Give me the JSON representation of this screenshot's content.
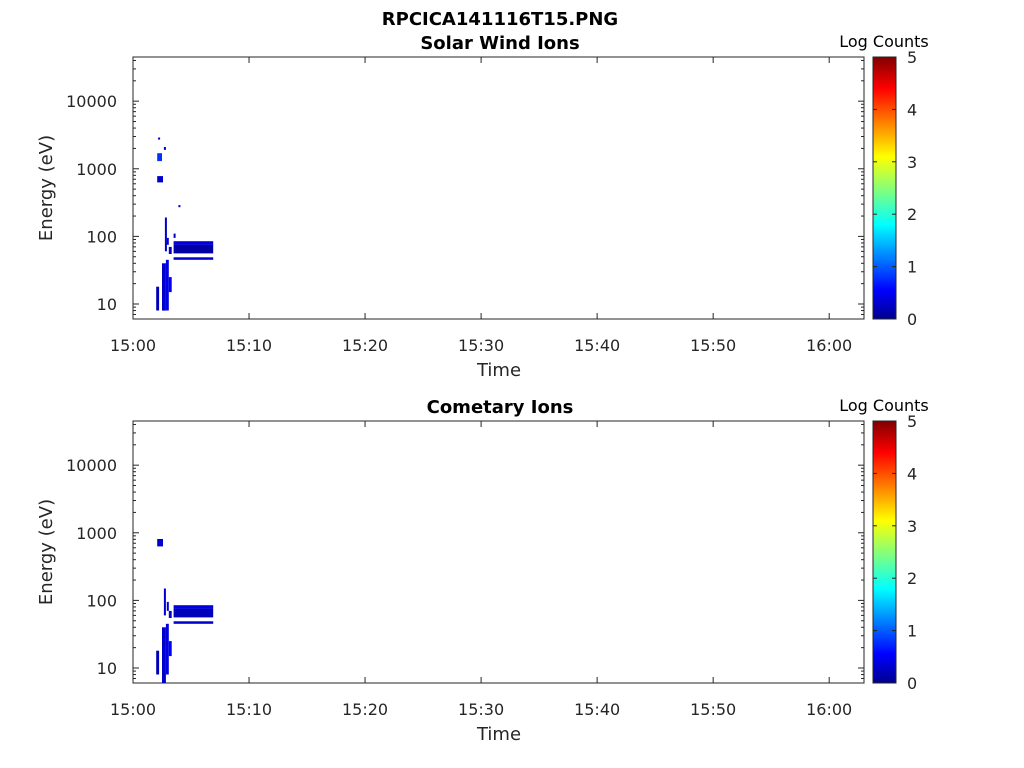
{
  "figure": {
    "suptitle": "RPCICA141116T15.PNG"
  },
  "colors": {
    "cmap": [
      "#00008f",
      "#0000ff",
      "#00ffff",
      "#ffff00",
      "#ff0000",
      "#800000"
    ],
    "axis": "#262626"
  },
  "chart_data": [
    {
      "type": "heatmap",
      "title": "Solar Wind Ions",
      "xlabel": "Time",
      "ylabel": "Energy (eV)",
      "yscale": "log",
      "ylim": [
        6,
        45000
      ],
      "xlim": [
        "15:00",
        "16:03"
      ],
      "xticks": [
        "15:00",
        "15:10",
        "15:20",
        "15:30",
        "15:40",
        "15:50",
        "16:00"
      ],
      "yticks": [
        10,
        100,
        1000,
        10000
      ],
      "ytick_labels": [
        "10",
        "100",
        "1000",
        "10000"
      ],
      "colorbar": {
        "label": "Log Counts",
        "range": [
          0,
          5
        ],
        "ticks": [
          "0",
          "1",
          "2",
          "3",
          "4",
          "5"
        ]
      },
      "cells": [
        {
          "t0": "15:02:00",
          "t1": "15:02:15",
          "e0": 8,
          "e1": 18,
          "v": 0.2
        },
        {
          "t0": "15:02:30",
          "t1": "15:02:50",
          "e0": 8,
          "e1": 40,
          "v": 0.3
        },
        {
          "t0": "15:02:50",
          "t1": "15:03:05",
          "e0": 8,
          "e1": 45,
          "v": 0.4
        },
        {
          "t0": "15:03:05",
          "t1": "15:03:20",
          "e0": 15,
          "e1": 25,
          "v": 0.5
        },
        {
          "t0": "15:02:45",
          "t1": "15:02:55",
          "e0": 60,
          "e1": 190,
          "v": 0.3
        },
        {
          "t0": "15:02:55",
          "t1": "15:03:05",
          "e0": 75,
          "e1": 95,
          "v": 0.3
        },
        {
          "t0": "15:03:05",
          "t1": "15:03:20",
          "e0": 55,
          "e1": 70,
          "v": 0.3
        },
        {
          "t0": "15:03:30",
          "t1": "15:03:40",
          "e0": 95,
          "e1": 110,
          "v": 0.3
        },
        {
          "t0": "15:03:30",
          "t1": "15:06:55",
          "e0": 75,
          "e1": 85,
          "v": 0.4
        },
        {
          "t0": "15:03:30",
          "t1": "15:06:55",
          "e0": 56,
          "e1": 75,
          "v": 0.1
        },
        {
          "t0": "15:03:30",
          "t1": "15:06:55",
          "e0": 45,
          "e1": 49,
          "v": 0.3
        },
        {
          "t0": "15:02:05",
          "t1": "15:02:30",
          "e0": 1300,
          "e1": 1700,
          "v": 0.8
        },
        {
          "t0": "15:02:05",
          "t1": "15:02:35",
          "e0": 630,
          "e1": 780,
          "v": 0.3
        },
        {
          "t0": "15:02:10",
          "t1": "15:02:15",
          "e0": 2700,
          "e1": 2900,
          "v": 0.3
        },
        {
          "t0": "15:02:40",
          "t1": "15:02:50",
          "e0": 1900,
          "e1": 2100,
          "v": 0.3
        },
        {
          "t0": "15:03:55",
          "t1": "15:04:00",
          "e0": 270,
          "e1": 290,
          "v": 0.3
        }
      ]
    },
    {
      "type": "heatmap",
      "title": "Cometary Ions",
      "xlabel": "Time",
      "ylabel": "Energy (eV)",
      "yscale": "log",
      "ylim": [
        6,
        45000
      ],
      "xlim": [
        "15:00",
        "16:03"
      ],
      "xticks": [
        "15:00",
        "15:10",
        "15:20",
        "15:30",
        "15:40",
        "15:50",
        "16:00"
      ],
      "yticks": [
        10,
        100,
        1000,
        10000
      ],
      "ytick_labels": [
        "10",
        "100",
        "1000",
        "10000"
      ],
      "colorbar": {
        "label": "Log Counts",
        "range": [
          0,
          5
        ],
        "ticks": [
          "0",
          "1",
          "2",
          "3",
          "4",
          "5"
        ]
      },
      "cells": [
        {
          "t0": "15:02:00",
          "t1": "15:02:15",
          "e0": 8,
          "e1": 18,
          "v": 0.2
        },
        {
          "t0": "15:02:30",
          "t1": "15:02:50",
          "e0": 6,
          "e1": 40,
          "v": 0.3
        },
        {
          "t0": "15:02:50",
          "t1": "15:03:05",
          "e0": 8,
          "e1": 45,
          "v": 0.4
        },
        {
          "t0": "15:03:05",
          "t1": "15:03:20",
          "e0": 15,
          "e1": 25,
          "v": 0.5
        },
        {
          "t0": "15:02:40",
          "t1": "15:02:50",
          "e0": 60,
          "e1": 150,
          "v": 0.3
        },
        {
          "t0": "15:02:55",
          "t1": "15:03:05",
          "e0": 70,
          "e1": 95,
          "v": 0.3
        },
        {
          "t0": "15:03:05",
          "t1": "15:03:20",
          "e0": 55,
          "e1": 70,
          "v": 0.3
        },
        {
          "t0": "15:03:30",
          "t1": "15:06:55",
          "e0": 75,
          "e1": 85,
          "v": 0.4
        },
        {
          "t0": "15:03:30",
          "t1": "15:06:55",
          "e0": 56,
          "e1": 75,
          "v": 0.2
        },
        {
          "t0": "15:03:30",
          "t1": "15:06:55",
          "e0": 45,
          "e1": 49,
          "v": 0.3
        },
        {
          "t0": "15:02:05",
          "t1": "15:02:35",
          "e0": 630,
          "e1": 810,
          "v": 0.3
        }
      ]
    }
  ]
}
